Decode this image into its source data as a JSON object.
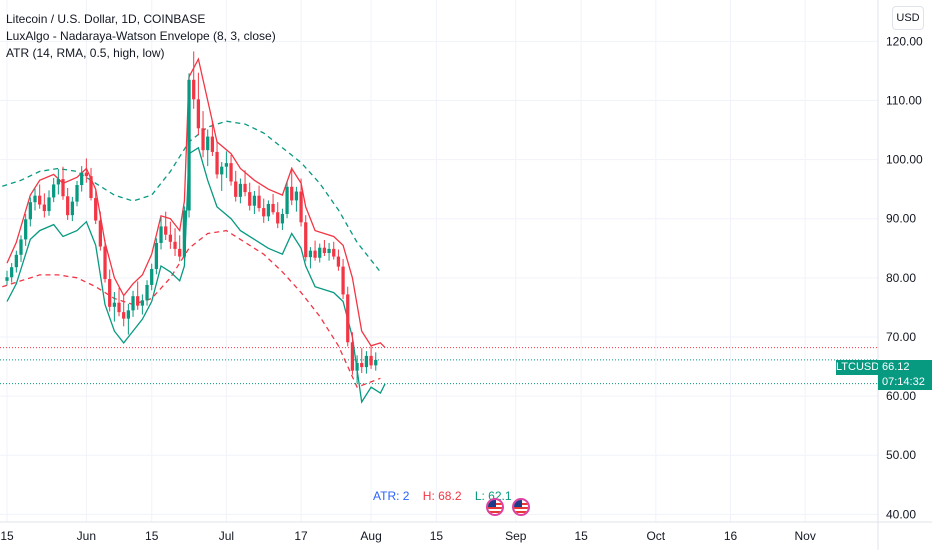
{
  "header": {
    "symbol_line": "Litecoin / U.S. Dollar, 1D, COINBASE",
    "indicator_1": "LuxAlgo - Nadaraya-Watson Envelope (8, 3, close)",
    "indicator_2": "ATR (14, RMA, 0.5, high, low)",
    "currency_button": "USD"
  },
  "atr_readout": {
    "atr": "ATR: 2",
    "high": "H: 68.2",
    "low": "L: 62.1"
  },
  "price_tag": {
    "ticker": "LTCUSD",
    "price": "66.12",
    "countdown": "07:14:32"
  },
  "colors": {
    "up": "#089981",
    "down": "#f23645",
    "grid": "#f0f3fa",
    "upper_envelope": "#089981",
    "lower_envelope": "#f23645",
    "atr_text": "#2962ff",
    "atr_high": "#f23645",
    "atr_low": "#089981"
  },
  "chart_data": {
    "type": "candlestick",
    "yaxis": {
      "ticks": [
        40,
        50,
        60,
        70,
        80,
        90,
        100,
        110,
        120
      ],
      "range": [
        38.7,
        127.0
      ]
    },
    "xaxis": {
      "ticks": [
        {
          "label": "15",
          "day": 0
        },
        {
          "label": "Jun",
          "day": 17
        },
        {
          "label": "15",
          "day": 31
        },
        {
          "label": "Jul",
          "day": 47
        },
        {
          "label": "17",
          "day": 63
        },
        {
          "label": "Aug",
          "day": 78
        },
        {
          "label": "15",
          "day": 92
        },
        {
          "label": "Sep",
          "day": 109
        },
        {
          "label": "15",
          "day": 123
        },
        {
          "label": "Oct",
          "day": 139
        },
        {
          "label": "16",
          "day": 155
        },
        {
          "label": "Nov",
          "day": 171
        }
      ],
      "range": [
        -1.5,
        186.6
      ]
    },
    "horizontal_lines": [
      {
        "value": 68.2,
        "color": "#f23645"
      },
      {
        "value": 66.12,
        "color": "#089981"
      },
      {
        "value": 62.1,
        "color": "#089981"
      }
    ],
    "candles": [
      [
        79.5,
        81.2,
        78.8,
        80.1
      ],
      [
        80.1,
        82.5,
        79.2,
        81.8
      ],
      [
        81.8,
        84.6,
        80.9,
        83.9
      ],
      [
        83.9,
        87.2,
        82.7,
        86.5
      ],
      [
        86.5,
        90.8,
        85.4,
        89.9
      ],
      [
        89.9,
        93.6,
        88.7,
        92.8
      ],
      [
        92.8,
        95.1,
        91.4,
        93.9
      ],
      [
        93.9,
        95.8,
        91.7,
        92.4
      ],
      [
        92.4,
        94.3,
        90.2,
        91.3
      ],
      [
        91.3,
        94.8,
        90.5,
        93.6
      ],
      [
        93.6,
        96.9,
        92.8,
        95.8
      ],
      [
        95.8,
        98.4,
        94.1,
        96.7
      ],
      [
        96.7,
        98.8,
        93.2,
        93.8
      ],
      [
        93.8,
        95.2,
        89.8,
        90.6
      ],
      [
        90.6,
        93.7,
        89.6,
        92.9
      ],
      [
        92.9,
        96.4,
        92.1,
        95.7
      ],
      [
        95.7,
        98.9,
        94.6,
        97.8
      ],
      [
        97.8,
        100.2,
        96.1,
        97.2
      ],
      [
        97.2,
        98.6,
        93.1,
        93.5
      ],
      [
        93.5,
        94.8,
        89.1,
        89.7
      ],
      [
        89.7,
        91.2,
        84.6,
        85.3
      ],
      [
        85.3,
        86.4,
        79.2,
        79.8
      ],
      [
        79.8,
        81.4,
        74.3,
        75.1
      ],
      [
        75.1,
        77.6,
        72.6,
        75.8
      ],
      [
        75.8,
        78.3,
        73.5,
        74.2
      ],
      [
        74.2,
        76.9,
        71.8,
        73.1
      ],
      [
        73.1,
        75.6,
        70.4,
        74.5
      ],
      [
        74.5,
        77.8,
        73.4,
        76.9
      ],
      [
        76.9,
        79.4,
        74.6,
        75.3
      ],
      [
        75.3,
        77.2,
        73.8,
        76.2
      ],
      [
        76.2,
        79.6,
        75.3,
        78.8
      ],
      [
        78.8,
        82.4,
        77.9,
        81.5
      ],
      [
        81.5,
        86.7,
        80.6,
        85.9
      ],
      [
        85.9,
        90.3,
        84.8,
        88.7
      ],
      [
        88.7,
        91.2,
        86.4,
        87.3
      ],
      [
        87.3,
        89.5,
        84.9,
        86.1
      ],
      [
        86.1,
        88.4,
        83.7,
        84.9
      ],
      [
        84.9,
        87.2,
        82.8,
        83.6
      ],
      [
        83.6,
        92.1,
        82.9,
        91.4
      ],
      [
        91.4,
        114.6,
        90.2,
        113.5
      ],
      [
        113.5,
        118.3,
        108.6,
        110.2
      ],
      [
        110.2,
        114.7,
        104.1,
        105.3
      ],
      [
        105.3,
        108.2,
        100.4,
        101.6
      ],
      [
        101.6,
        105.1,
        98.9,
        103.9
      ],
      [
        103.9,
        106.5,
        100.6,
        101.3
      ],
      [
        101.3,
        103.2,
        96.8,
        97.5
      ],
      [
        97.5,
        99.6,
        94.7,
        98.8
      ],
      [
        98.8,
        101.4,
        96.9,
        99.4
      ],
      [
        99.4,
        100.8,
        95.6,
        96.3
      ],
      [
        96.3,
        98.1,
        92.9,
        93.7
      ],
      [
        93.7,
        96.8,
        92.6,
        95.9
      ],
      [
        95.9,
        98.2,
        93.8,
        94.5
      ],
      [
        94.5,
        96.1,
        91.4,
        92.2
      ],
      [
        92.2,
        94.7,
        90.8,
        93.9
      ],
      [
        93.9,
        95.6,
        91.2,
        91.8
      ],
      [
        91.8,
        93.4,
        89.3,
        90.4
      ],
      [
        90.4,
        93.1,
        89.6,
        92.5
      ],
      [
        92.5,
        94.2,
        90.7,
        91.1
      ],
      [
        91.1,
        92.8,
        88.4,
        89.2
      ],
      [
        89.2,
        91.7,
        88.1,
        90.8
      ],
      [
        90.8,
        96.2,
        90.1,
        95.4
      ],
      [
        95.4,
        98.7,
        92.3,
        93.1
      ],
      [
        93.1,
        95.4,
        91.2,
        94.6
      ],
      [
        94.6,
        96.8,
        88.7,
        89.4
      ],
      [
        89.4,
        90.6,
        82.8,
        83.5
      ],
      [
        83.5,
        85.2,
        81.6,
        84.6
      ],
      [
        84.6,
        86.3,
        82.9,
        83.4
      ],
      [
        83.4,
        85.8,
        82.6,
        85.1
      ],
      [
        85.1,
        86.4,
        83.7,
        84.2
      ],
      [
        84.2,
        85.9,
        82.9,
        84.9
      ],
      [
        84.9,
        86.1,
        83.1,
        83.6
      ],
      [
        83.6,
        84.8,
        81.2,
        81.9
      ],
      [
        81.9,
        83.2,
        76.4,
        77.2
      ],
      [
        77.2,
        78.5,
        68.4,
        69.1
      ],
      [
        69.1,
        70.8,
        63.6,
        64.3
      ],
      [
        64.3,
        66.9,
        62.2,
        65.6
      ],
      [
        65.6,
        68.1,
        63.9,
        64.9
      ],
      [
        64.9,
        67.6,
        63.8,
        66.8
      ],
      [
        66.8,
        68.5,
        64.6,
        65.2
      ],
      [
        65.2,
        67.4,
        64.3,
        66.12
      ]
    ],
    "upper_envelope_solid_red": [
      [
        0,
        82.5
      ],
      [
        2,
        86.0
      ],
      [
        5,
        94.0
      ],
      [
        7,
        96.5
      ],
      [
        10,
        97.5
      ],
      [
        12,
        96.0
      ],
      [
        15,
        97.0
      ],
      [
        17,
        98.5
      ],
      [
        19,
        95.0
      ],
      [
        21,
        86.0
      ],
      [
        23,
        80.0
      ],
      [
        25,
        77.0
      ],
      [
        27,
        79.0
      ],
      [
        29,
        80.5
      ],
      [
        31,
        84.0
      ],
      [
        33,
        90.5
      ],
      [
        35,
        90.0
      ],
      [
        37,
        88.0
      ],
      [
        38,
        93.0
      ],
      [
        39,
        114.0
      ],
      [
        41,
        117.0
      ],
      [
        43,
        110.0
      ],
      [
        45,
        103.0
      ],
      [
        48,
        101.0
      ],
      [
        50,
        98.5
      ],
      [
        53,
        96.5
      ],
      [
        56,
        95.0
      ],
      [
        59,
        94.0
      ],
      [
        61,
        98.5
      ],
      [
        63,
        96.0
      ],
      [
        64,
        92.0
      ],
      [
        66,
        88.0
      ],
      [
        70,
        87.0
      ],
      [
        72,
        85.5
      ],
      [
        74,
        80.0
      ],
      [
        76,
        71.0
      ],
      [
        78,
        68.5
      ],
      [
        80,
        69.0
      ],
      [
        81,
        68.2
      ]
    ],
    "lower_envelope_solid_green": [
      [
        0,
        76.0
      ],
      [
        2,
        79.0
      ],
      [
        5,
        86.5
      ],
      [
        7,
        88.0
      ],
      [
        10,
        89.0
      ],
      [
        12,
        87.0
      ],
      [
        15,
        88.0
      ],
      [
        17,
        89.5
      ],
      [
        19,
        85.5
      ],
      [
        21,
        75.5
      ],
      [
        23,
        71.0
      ],
      [
        25,
        69.0
      ],
      [
        27,
        71.0
      ],
      [
        29,
        73.0
      ],
      [
        31,
        76.0
      ],
      [
        33,
        82.0
      ],
      [
        35,
        81.0
      ],
      [
        37,
        79.5
      ],
      [
        38,
        82.0
      ],
      [
        39,
        101.0
      ],
      [
        41,
        102.0
      ],
      [
        43,
        96.5
      ],
      [
        45,
        92.0
      ],
      [
        48,
        90.0
      ],
      [
        50,
        88.0
      ],
      [
        53,
        86.5
      ],
      [
        56,
        85.0
      ],
      [
        59,
        84.0
      ],
      [
        61,
        87.5
      ],
      [
        63,
        85.0
      ],
      [
        64,
        82.0
      ],
      [
        66,
        78.5
      ],
      [
        70,
        77.5
      ],
      [
        72,
        76.0
      ],
      [
        74,
        70.0
      ],
      [
        76,
        59.0
      ],
      [
        78,
        61.5
      ],
      [
        80,
        60.5
      ],
      [
        81,
        62.1
      ]
    ],
    "upper_envelope_dashed_green": [
      [
        -1,
        95.5
      ],
      [
        3,
        96.5
      ],
      [
        7,
        98.0
      ],
      [
        11,
        98.5
      ],
      [
        15,
        98.0
      ],
      [
        19,
        96.0
      ],
      [
        23,
        94.0
      ],
      [
        27,
        93.0
      ],
      [
        31,
        94.0
      ],
      [
        35,
        98.0
      ],
      [
        39,
        103.0
      ],
      [
        43,
        105.5
      ],
      [
        47,
        106.5
      ],
      [
        51,
        106.0
      ],
      [
        55,
        104.5
      ],
      [
        59,
        102.0
      ],
      [
        63,
        99.5
      ],
      [
        67,
        96.0
      ],
      [
        71,
        91.5
      ],
      [
        75,
        86.0
      ],
      [
        80,
        81.0
      ]
    ],
    "lower_envelope_dashed_red": [
      [
        -1,
        78.5
      ],
      [
        3,
        79.5
      ],
      [
        7,
        80.5
      ],
      [
        11,
        80.5
      ],
      [
        15,
        80.0
      ],
      [
        19,
        78.5
      ],
      [
        23,
        76.5
      ],
      [
        27,
        75.5
      ],
      [
        31,
        76.5
      ],
      [
        35,
        80.0
      ],
      [
        39,
        85.0
      ],
      [
        43,
        87.5
      ],
      [
        47,
        88.0
      ],
      [
        51,
        86.0
      ],
      [
        55,
        84.0
      ],
      [
        59,
        81.0
      ],
      [
        63,
        77.5
      ],
      [
        67,
        73.5
      ],
      [
        71,
        68.5
      ],
      [
        75,
        61.5
      ],
      [
        80,
        63.0
      ]
    ]
  }
}
